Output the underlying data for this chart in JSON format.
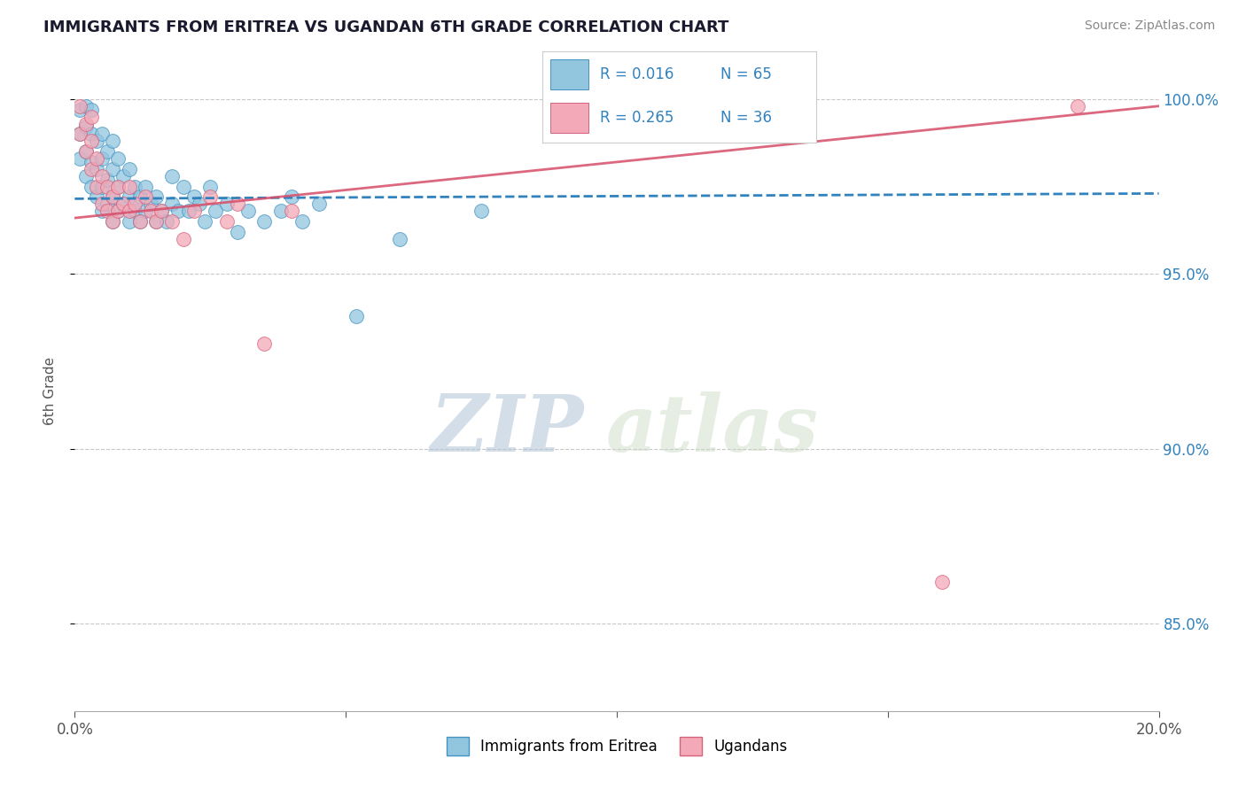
{
  "title": "IMMIGRANTS FROM ERITREA VS UGANDAN 6TH GRADE CORRELATION CHART",
  "source_text": "Source: ZipAtlas.com",
  "ylabel": "6th Grade",
  "xlim": [
    0.0,
    0.2
  ],
  "ylim": [
    0.825,
    1.008
  ],
  "xtick_positions": [
    0.0,
    0.05,
    0.1,
    0.15,
    0.2
  ],
  "xtick_labels": [
    "0.0%",
    "",
    "",
    "",
    "20.0%"
  ],
  "ytick_positions": [
    0.85,
    0.9,
    0.95,
    1.0
  ],
  "ytick_labels": [
    "85.0%",
    "90.0%",
    "95.0%",
    "100.0%"
  ],
  "blue_color": "#92c5de",
  "pink_color": "#f4a9b8",
  "blue_edge_color": "#4393c3",
  "pink_edge_color": "#d6627a",
  "blue_line_color": "#3182bd",
  "pink_line_color": "#d64e6a",
  "R_blue": 0.016,
  "N_blue": 65,
  "R_pink": 0.265,
  "N_pink": 36,
  "blue_scatter_x": [
    0.001,
    0.001,
    0.001,
    0.002,
    0.002,
    0.002,
    0.002,
    0.003,
    0.003,
    0.003,
    0.003,
    0.004,
    0.004,
    0.004,
    0.005,
    0.005,
    0.005,
    0.005,
    0.006,
    0.006,
    0.006,
    0.007,
    0.007,
    0.007,
    0.007,
    0.008,
    0.008,
    0.008,
    0.009,
    0.009,
    0.01,
    0.01,
    0.01,
    0.011,
    0.011,
    0.012,
    0.012,
    0.013,
    0.013,
    0.014,
    0.015,
    0.015,
    0.016,
    0.017,
    0.018,
    0.018,
    0.019,
    0.02,
    0.021,
    0.022,
    0.023,
    0.024,
    0.025,
    0.026,
    0.028,
    0.03,
    0.032,
    0.035,
    0.038,
    0.04,
    0.042,
    0.045,
    0.052,
    0.06,
    0.075
  ],
  "blue_scatter_y": [
    0.99,
    0.983,
    0.997,
    0.978,
    0.985,
    0.992,
    0.998,
    0.975,
    0.982,
    0.99,
    0.997,
    0.972,
    0.98,
    0.988,
    0.968,
    0.975,
    0.983,
    0.99,
    0.97,
    0.977,
    0.985,
    0.965,
    0.972,
    0.98,
    0.988,
    0.968,
    0.975,
    0.983,
    0.97,
    0.978,
    0.965,
    0.972,
    0.98,
    0.968,
    0.975,
    0.965,
    0.972,
    0.968,
    0.975,
    0.97,
    0.965,
    0.972,
    0.968,
    0.965,
    0.97,
    0.978,
    0.968,
    0.975,
    0.968,
    0.972,
    0.97,
    0.965,
    0.975,
    0.968,
    0.97,
    0.962,
    0.968,
    0.965,
    0.968,
    0.972,
    0.965,
    0.97,
    0.938,
    0.96,
    0.968
  ],
  "pink_scatter_x": [
    0.001,
    0.001,
    0.002,
    0.002,
    0.003,
    0.003,
    0.003,
    0.004,
    0.004,
    0.005,
    0.005,
    0.006,
    0.006,
    0.007,
    0.007,
    0.008,
    0.008,
    0.009,
    0.01,
    0.01,
    0.011,
    0.012,
    0.013,
    0.014,
    0.015,
    0.016,
    0.018,
    0.02,
    0.022,
    0.025,
    0.028,
    0.03,
    0.035,
    0.04,
    0.16,
    0.185
  ],
  "pink_scatter_y": [
    0.998,
    0.99,
    0.985,
    0.993,
    0.98,
    0.988,
    0.995,
    0.975,
    0.983,
    0.97,
    0.978,
    0.968,
    0.975,
    0.965,
    0.972,
    0.968,
    0.975,
    0.97,
    0.968,
    0.975,
    0.97,
    0.965,
    0.972,
    0.968,
    0.965,
    0.968,
    0.965,
    0.96,
    0.968,
    0.972,
    0.965,
    0.97,
    0.93,
    0.968,
    0.862,
    0.998
  ],
  "watermark_zip": "ZIP",
  "watermark_atlas": "atlas",
  "title_color": "#1a1a2e",
  "tick_label_color": "#555555"
}
